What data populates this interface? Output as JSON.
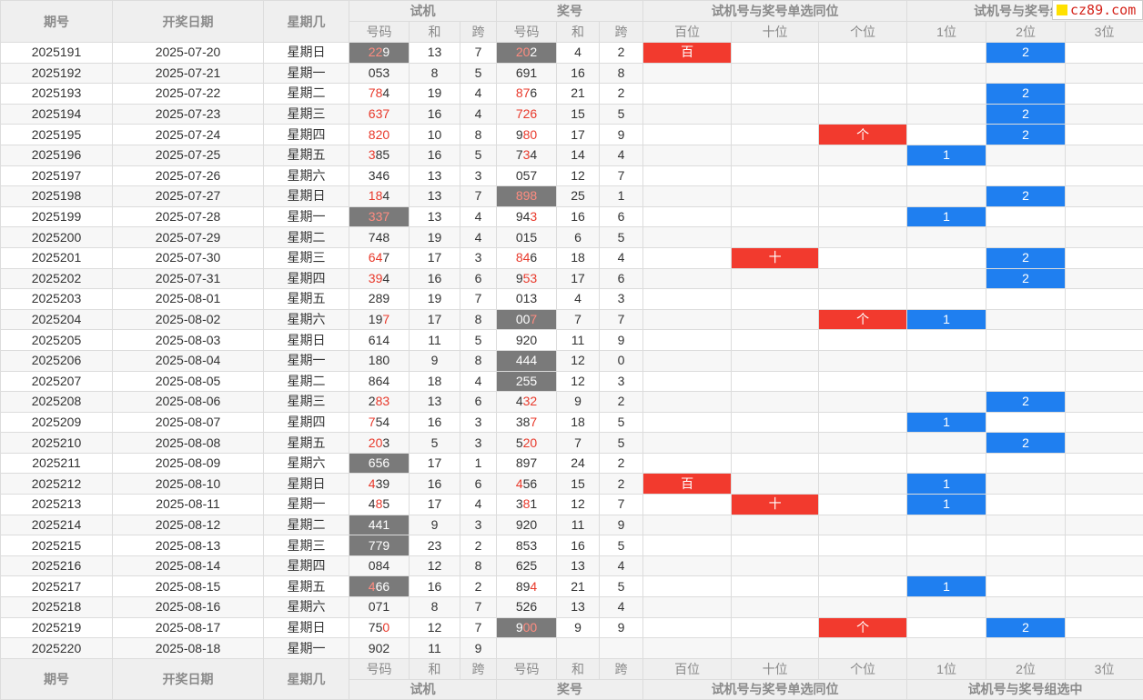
{
  "header": {
    "col_period": "期号",
    "col_date": "开奖日期",
    "col_weekday": "星期几",
    "grp_trial": "试机",
    "grp_draw": "奖号",
    "grp_single": "试机号与奖号单选同位",
    "grp_group_top": "试机号与奖号组",
    "grp_group_bottom": "试机号与奖号组选中",
    "sub_number": "号码",
    "sub_sum": "和",
    "sub_span": "跨",
    "sub_hundreds": "百位",
    "sub_tens": "十位",
    "sub_ones": "个位",
    "sub_1": "1位",
    "sub_2": "2位",
    "sub_3": "3位"
  },
  "logo": {
    "text": "cz89.com"
  },
  "colors": {
    "red_cell": "#f23a2e",
    "blue_cell": "#1f7ff0",
    "gray_cell": "#7a7a7a",
    "red_digit": "#e8392b"
  },
  "rows": [
    {
      "period": "2025191",
      "date": "2025-07-20",
      "weekday": "星期日",
      "trial": "229",
      "trial_red": [
        0,
        1
      ],
      "trial_hl": true,
      "tsum": "13",
      "tspan": "7",
      "draw": "202",
      "draw_red": [
        0,
        1
      ],
      "draw_hl": true,
      "dsum": "4",
      "dspan": "2",
      "bai": "百",
      "shi": "",
      "ge": "",
      "g1": "",
      "g2": "2",
      "g3": ""
    },
    {
      "period": "2025192",
      "date": "2025-07-21",
      "weekday": "星期一",
      "trial": "053",
      "trial_red": [],
      "trial_hl": false,
      "tsum": "8",
      "tspan": "5",
      "draw": "691",
      "draw_red": [],
      "draw_hl": false,
      "dsum": "16",
      "dspan": "8",
      "bai": "",
      "shi": "",
      "ge": "",
      "g1": "",
      "g2": "",
      "g3": ""
    },
    {
      "period": "2025193",
      "date": "2025-07-22",
      "weekday": "星期二",
      "trial": "784",
      "trial_red": [
        0,
        1
      ],
      "trial_hl": false,
      "tsum": "19",
      "tspan": "4",
      "draw": "876",
      "draw_red": [
        0,
        1
      ],
      "draw_hl": false,
      "dsum": "21",
      "dspan": "2",
      "bai": "",
      "shi": "",
      "ge": "",
      "g1": "",
      "g2": "2",
      "g3": ""
    },
    {
      "period": "2025194",
      "date": "2025-07-23",
      "weekday": "星期三",
      "trial": "637",
      "trial_red": [
        0,
        1,
        2
      ],
      "trial_hl": false,
      "tsum": "16",
      "tspan": "4",
      "draw": "726",
      "draw_red": [
        0,
        1,
        2
      ],
      "draw_hl": false,
      "dsum": "15",
      "dspan": "5",
      "bai": "",
      "shi": "",
      "ge": "",
      "g1": "",
      "g2": "2",
      "g3": ""
    },
    {
      "period": "2025195",
      "date": "2025-07-24",
      "weekday": "星期四",
      "trial": "820",
      "trial_red": [
        0,
        1,
        2
      ],
      "trial_hl": false,
      "tsum": "10",
      "tspan": "8",
      "draw": "980",
      "draw_red": [
        1,
        2
      ],
      "draw_hl": false,
      "dsum": "17",
      "dspan": "9",
      "bai": "",
      "shi": "",
      "ge": "个",
      "g1": "",
      "g2": "2",
      "g3": ""
    },
    {
      "period": "2025196",
      "date": "2025-07-25",
      "weekday": "星期五",
      "trial": "385",
      "trial_red": [
        0
      ],
      "trial_hl": false,
      "tsum": "16",
      "tspan": "5",
      "draw": "734",
      "draw_red": [
        1
      ],
      "draw_hl": false,
      "dsum": "14",
      "dspan": "4",
      "bai": "",
      "shi": "",
      "ge": "",
      "g1": "1",
      "g2": "",
      "g3": ""
    },
    {
      "period": "2025197",
      "date": "2025-07-26",
      "weekday": "星期六",
      "trial": "346",
      "trial_red": [],
      "trial_hl": false,
      "tsum": "13",
      "tspan": "3",
      "draw": "057",
      "draw_red": [],
      "draw_hl": false,
      "dsum": "12",
      "dspan": "7",
      "bai": "",
      "shi": "",
      "ge": "",
      "g1": "",
      "g2": "",
      "g3": ""
    },
    {
      "period": "2025198",
      "date": "2025-07-27",
      "weekday": "星期日",
      "trial": "184",
      "trial_red": [
        0,
        1
      ],
      "trial_hl": false,
      "tsum": "13",
      "tspan": "7",
      "draw": "898",
      "draw_red": [
        0,
        1,
        2
      ],
      "draw_hl": true,
      "dsum": "25",
      "dspan": "1",
      "bai": "",
      "shi": "",
      "ge": "",
      "g1": "",
      "g2": "2",
      "g3": ""
    },
    {
      "period": "2025199",
      "date": "2025-07-28",
      "weekday": "星期一",
      "trial": "337",
      "trial_red": [
        0,
        1,
        2
      ],
      "trial_hl": true,
      "tsum": "13",
      "tspan": "4",
      "draw": "943",
      "draw_red": [
        2
      ],
      "draw_hl": false,
      "dsum": "16",
      "dspan": "6",
      "bai": "",
      "shi": "",
      "ge": "",
      "g1": "1",
      "g2": "",
      "g3": ""
    },
    {
      "period": "2025200",
      "date": "2025-07-29",
      "weekday": "星期二",
      "trial": "748",
      "trial_red": [],
      "trial_hl": false,
      "tsum": "19",
      "tspan": "4",
      "draw": "015",
      "draw_red": [],
      "draw_hl": false,
      "dsum": "6",
      "dspan": "5",
      "bai": "",
      "shi": "",
      "ge": "",
      "g1": "",
      "g2": "",
      "g3": ""
    },
    {
      "period": "2025201",
      "date": "2025-07-30",
      "weekday": "星期三",
      "trial": "647",
      "trial_red": [
        0,
        1
      ],
      "trial_hl": false,
      "tsum": "17",
      "tspan": "3",
      "draw": "846",
      "draw_red": [
        0,
        1
      ],
      "draw_hl": false,
      "dsum": "18",
      "dspan": "4",
      "bai": "",
      "shi": "十",
      "ge": "",
      "g1": "",
      "g2": "2",
      "g3": ""
    },
    {
      "period": "2025202",
      "date": "2025-07-31",
      "weekday": "星期四",
      "trial": "394",
      "trial_red": [
        0,
        1
      ],
      "trial_hl": false,
      "tsum": "16",
      "tspan": "6",
      "draw": "953",
      "draw_red": [
        1,
        2
      ],
      "draw_hl": false,
      "dsum": "17",
      "dspan": "6",
      "bai": "",
      "shi": "",
      "ge": "",
      "g1": "",
      "g2": "2",
      "g3": ""
    },
    {
      "period": "2025203",
      "date": "2025-08-01",
      "weekday": "星期五",
      "trial": "289",
      "trial_red": [],
      "trial_hl": false,
      "tsum": "19",
      "tspan": "7",
      "draw": "013",
      "draw_red": [],
      "draw_hl": false,
      "dsum": "4",
      "dspan": "3",
      "bai": "",
      "shi": "",
      "ge": "",
      "g1": "",
      "g2": "",
      "g3": ""
    },
    {
      "period": "2025204",
      "date": "2025-08-02",
      "weekday": "星期六",
      "trial": "197",
      "trial_red": [
        2
      ],
      "trial_hl": false,
      "tsum": "17",
      "tspan": "8",
      "draw": "007",
      "draw_red": [
        2
      ],
      "draw_hl": true,
      "dsum": "7",
      "dspan": "7",
      "bai": "",
      "shi": "",
      "ge": "个",
      "g1": "1",
      "g2": "",
      "g3": ""
    },
    {
      "period": "2025205",
      "date": "2025-08-03",
      "weekday": "星期日",
      "trial": "614",
      "trial_red": [],
      "trial_hl": false,
      "tsum": "11",
      "tspan": "5",
      "draw": "920",
      "draw_red": [],
      "draw_hl": false,
      "dsum": "11",
      "dspan": "9",
      "bai": "",
      "shi": "",
      "ge": "",
      "g1": "",
      "g2": "",
      "g3": ""
    },
    {
      "period": "2025206",
      "date": "2025-08-04",
      "weekday": "星期一",
      "trial": "180",
      "trial_red": [],
      "trial_hl": false,
      "tsum": "9",
      "tspan": "8",
      "draw": "444",
      "draw_red": [],
      "draw_hl": true,
      "dsum": "12",
      "dspan": "0",
      "bai": "",
      "shi": "",
      "ge": "",
      "g1": "",
      "g2": "",
      "g3": ""
    },
    {
      "period": "2025207",
      "date": "2025-08-05",
      "weekday": "星期二",
      "trial": "864",
      "trial_red": [],
      "trial_hl": false,
      "tsum": "18",
      "tspan": "4",
      "draw": "255",
      "draw_red": [],
      "draw_hl": true,
      "dsum": "12",
      "dspan": "3",
      "bai": "",
      "shi": "",
      "ge": "",
      "g1": "",
      "g2": "",
      "g3": ""
    },
    {
      "period": "2025208",
      "date": "2025-08-06",
      "weekday": "星期三",
      "trial": "283",
      "trial_red": [
        1,
        2
      ],
      "trial_hl": false,
      "tsum": "13",
      "tspan": "6",
      "draw": "432",
      "draw_red": [
        1,
        2
      ],
      "draw_hl": false,
      "dsum": "9",
      "dspan": "2",
      "bai": "",
      "shi": "",
      "ge": "",
      "g1": "",
      "g2": "2",
      "g3": ""
    },
    {
      "period": "2025209",
      "date": "2025-08-07",
      "weekday": "星期四",
      "trial": "754",
      "trial_red": [
        0
      ],
      "trial_hl": false,
      "tsum": "16",
      "tspan": "3",
      "draw": "387",
      "draw_red": [
        2
      ],
      "draw_hl": false,
      "dsum": "18",
      "dspan": "5",
      "bai": "",
      "shi": "",
      "ge": "",
      "g1": "1",
      "g2": "",
      "g3": ""
    },
    {
      "period": "2025210",
      "date": "2025-08-08",
      "weekday": "星期五",
      "trial": "203",
      "trial_red": [
        0,
        1
      ],
      "trial_hl": false,
      "tsum": "5",
      "tspan": "3",
      "draw": "520",
      "draw_red": [
        1,
        2
      ],
      "draw_hl": false,
      "dsum": "7",
      "dspan": "5",
      "bai": "",
      "shi": "",
      "ge": "",
      "g1": "",
      "g2": "2",
      "g3": ""
    },
    {
      "period": "2025211",
      "date": "2025-08-09",
      "weekday": "星期六",
      "trial": "656",
      "trial_red": [],
      "trial_hl": true,
      "tsum": "17",
      "tspan": "1",
      "draw": "897",
      "draw_red": [],
      "draw_hl": false,
      "dsum": "24",
      "dspan": "2",
      "bai": "",
      "shi": "",
      "ge": "",
      "g1": "",
      "g2": "",
      "g3": ""
    },
    {
      "period": "2025212",
      "date": "2025-08-10",
      "weekday": "星期日",
      "trial": "439",
      "trial_red": [
        0
      ],
      "trial_hl": false,
      "tsum": "16",
      "tspan": "6",
      "draw": "456",
      "draw_red": [
        0
      ],
      "draw_hl": false,
      "dsum": "15",
      "dspan": "2",
      "bai": "百",
      "shi": "",
      "ge": "",
      "g1": "1",
      "g2": "",
      "g3": ""
    },
    {
      "period": "2025213",
      "date": "2025-08-11",
      "weekday": "星期一",
      "trial": "485",
      "trial_red": [
        1
      ],
      "trial_hl": false,
      "tsum": "17",
      "tspan": "4",
      "draw": "381",
      "draw_red": [
        1
      ],
      "draw_hl": false,
      "dsum": "12",
      "dspan": "7",
      "bai": "",
      "shi": "十",
      "ge": "",
      "g1": "1",
      "g2": "",
      "g3": ""
    },
    {
      "period": "2025214",
      "date": "2025-08-12",
      "weekday": "星期二",
      "trial": "441",
      "trial_red": [],
      "trial_hl": true,
      "tsum": "9",
      "tspan": "3",
      "draw": "920",
      "draw_red": [],
      "draw_hl": false,
      "dsum": "11",
      "dspan": "9",
      "bai": "",
      "shi": "",
      "ge": "",
      "g1": "",
      "g2": "",
      "g3": ""
    },
    {
      "period": "2025215",
      "date": "2025-08-13",
      "weekday": "星期三",
      "trial": "779",
      "trial_red": [],
      "trial_hl": true,
      "tsum": "23",
      "tspan": "2",
      "draw": "853",
      "draw_red": [],
      "draw_hl": false,
      "dsum": "16",
      "dspan": "5",
      "bai": "",
      "shi": "",
      "ge": "",
      "g1": "",
      "g2": "",
      "g3": ""
    },
    {
      "period": "2025216",
      "date": "2025-08-14",
      "weekday": "星期四",
      "trial": "084",
      "trial_red": [],
      "trial_hl": false,
      "tsum": "12",
      "tspan": "8",
      "draw": "625",
      "draw_red": [],
      "draw_hl": false,
      "dsum": "13",
      "dspan": "4",
      "bai": "",
      "shi": "",
      "ge": "",
      "g1": "",
      "g2": "",
      "g3": ""
    },
    {
      "period": "2025217",
      "date": "2025-08-15",
      "weekday": "星期五",
      "trial": "466",
      "trial_red": [
        0
      ],
      "trial_hl": true,
      "tsum": "16",
      "tspan": "2",
      "draw": "894",
      "draw_red": [
        2
      ],
      "draw_hl": false,
      "dsum": "21",
      "dspan": "5",
      "bai": "",
      "shi": "",
      "ge": "",
      "g1": "1",
      "g2": "",
      "g3": ""
    },
    {
      "period": "2025218",
      "date": "2025-08-16",
      "weekday": "星期六",
      "trial": "071",
      "trial_red": [],
      "trial_hl": false,
      "tsum": "8",
      "tspan": "7",
      "draw": "526",
      "draw_red": [],
      "draw_hl": false,
      "dsum": "13",
      "dspan": "4",
      "bai": "",
      "shi": "",
      "ge": "",
      "g1": "",
      "g2": "",
      "g3": ""
    },
    {
      "period": "2025219",
      "date": "2025-08-17",
      "weekday": "星期日",
      "trial": "750",
      "trial_red": [
        2
      ],
      "trial_hl": false,
      "tsum": "12",
      "tspan": "7",
      "draw": "900",
      "draw_red": [
        1,
        2
      ],
      "draw_hl": true,
      "dsum": "9",
      "dspan": "9",
      "bai": "",
      "shi": "",
      "ge": "个",
      "g1": "",
      "g2": "2",
      "g3": ""
    },
    {
      "period": "2025220",
      "date": "2025-08-18",
      "weekday": "星期一",
      "trial": "902",
      "trial_red": [],
      "trial_hl": false,
      "tsum": "11",
      "tspan": "9",
      "draw": "",
      "draw_red": [],
      "draw_hl": false,
      "dsum": "",
      "dspan": "",
      "bai": "",
      "shi": "",
      "ge": "",
      "g1": "",
      "g2": "",
      "g3": ""
    }
  ]
}
